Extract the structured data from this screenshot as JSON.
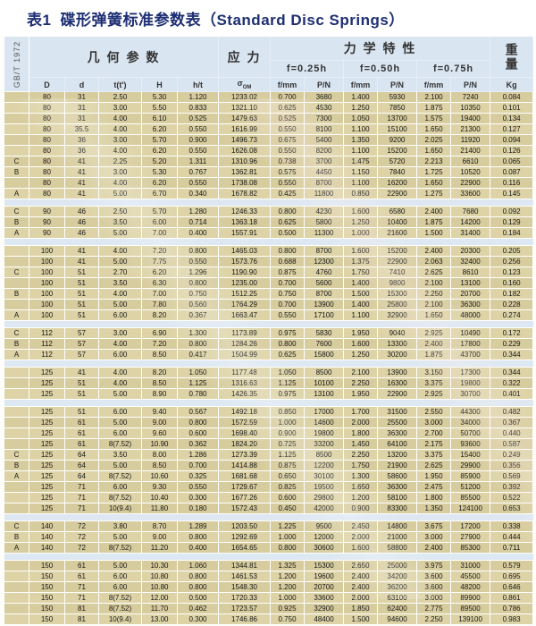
{
  "title": {
    "label": "表1",
    "zh": "碟形弹簧标准参数表",
    "en": "（Standard Disc Springs）"
  },
  "standard": "GB/T 1972",
  "header": {
    "geometry": "几 何 参 数",
    "stress": "应 力",
    "mechanical": "力 学 特 性",
    "weight": "重量",
    "deflections": [
      "f=0.25h",
      "f=0.50h",
      "f=0.75h"
    ],
    "columns": [
      "D",
      "d",
      "t(t')",
      "H",
      "h/t",
      "σ",
      "f/mm",
      "P/N",
      "f/mm",
      "P/N",
      "f/mm",
      "P/N",
      "Kg"
    ],
    "sigma_sub": "OM"
  },
  "colors": {
    "header_bg": "#d9e5f1",
    "row_bg": "#d7cc9d",
    "row_bg_alt": "#ddd3a6",
    "separator_bg": "#dde8f2",
    "title_color": "#1d2e73"
  },
  "groups": [
    {
      "rows": [
        [
          "",
          "80",
          "31",
          "2.50",
          "5.30",
          "1.120",
          "1233.02",
          "0.700",
          "3680",
          "1.400",
          "5930",
          "2.100",
          "7240",
          "0.084"
        ],
        [
          "",
          "80",
          "31",
          "3.00",
          "5.50",
          "0.833",
          "1321.10",
          "0.625",
          "4530",
          "1.250",
          "7850",
          "1.875",
          "10350",
          "0.101"
        ],
        [
          "",
          "80",
          "31",
          "4.00",
          "6.10",
          "0.525",
          "1479.63",
          "0.525",
          "7300",
          "1.050",
          "13700",
          "1.575",
          "19400",
          "0.134"
        ],
        [
          "",
          "80",
          "35.5",
          "4.00",
          "6.20",
          "0.550",
          "1616.99",
          "0.550",
          "8100",
          "1.100",
          "15100",
          "1.650",
          "21300",
          "0.127"
        ],
        [
          "",
          "80",
          "36",
          "3.00",
          "5.70",
          "0.900",
          "1496.73",
          "0.675",
          "5400",
          "1.350",
          "9200",
          "2.025",
          "11920",
          "0.094"
        ],
        [
          "",
          "80",
          "36",
          "4.00",
          "6.20",
          "0.550",
          "1626.08",
          "0.550",
          "8200",
          "1.100",
          "15200",
          "1.650",
          "21400",
          "0.126"
        ],
        [
          "C",
          "80",
          "41",
          "2.25",
          "5.20",
          "1.311",
          "1310.96",
          "0.738",
          "3700",
          "1.475",
          "5720",
          "2.213",
          "6610",
          "0.065"
        ],
        [
          "B",
          "80",
          "41",
          "3.00",
          "5.30",
          "0.767",
          "1362.81",
          "0.575",
          "4450",
          "1.150",
          "7840",
          "1.725",
          "10520",
          "0.087"
        ],
        [
          "",
          "80",
          "41",
          "4.00",
          "6.20",
          "0.550",
          "1738.08",
          "0.550",
          "8700",
          "1.100",
          "16200",
          "1.650",
          "22900",
          "0.116"
        ],
        [
          "A",
          "80",
          "41",
          "5.00",
          "6.70",
          "0.340",
          "1678.82",
          "0.425",
          "11800",
          "0.850",
          "22900",
          "1.275",
          "33600",
          "0.145"
        ]
      ]
    },
    {
      "rows": [
        [
          "C",
          "90",
          "46",
          "2.50",
          "5.70",
          "1.280",
          "1246.33",
          "0.800",
          "4230",
          "1.600",
          "6580",
          "2.400",
          "7680",
          "0.092"
        ],
        [
          "B",
          "90",
          "46",
          "3.50",
          "6.00",
          "0.714",
          "1363.18",
          "0.625",
          "5800",
          "1.250",
          "10400",
          "1.875",
          "14200",
          "0.129"
        ],
        [
          "A",
          "90",
          "46",
          "5.00",
          "7.00",
          "0.400",
          "1557.91",
          "0.500",
          "11300",
          "1.000",
          "21600",
          "1.500",
          "31400",
          "0.184"
        ]
      ]
    },
    {
      "rows": [
        [
          "",
          "100",
          "41",
          "4.00",
          "7.20",
          "0.800",
          "1465.03",
          "0.800",
          "8700",
          "1.600",
          "15200",
          "2.400",
          "20300",
          "0.205"
        ],
        [
          "",
          "100",
          "41",
          "5.00",
          "7.75",
          "0.550",
          "1573.76",
          "0.688",
          "12300",
          "1.375",
          "22900",
          "2.063",
          "32400",
          "0.256"
        ],
        [
          "C",
          "100",
          "51",
          "2.70",
          "6.20",
          "1.296",
          "1190.90",
          "0.875",
          "4760",
          "1.750",
          "7410",
          "2.625",
          "8610",
          "0.123"
        ],
        [
          "",
          "100",
          "51",
          "3.50",
          "6.30",
          "0.800",
          "1235.00",
          "0.700",
          "5600",
          "1.400",
          "9800",
          "2.100",
          "13100",
          "0.160"
        ],
        [
          "B",
          "100",
          "51",
          "4.00",
          "7.00",
          "0.750",
          "1512.25",
          "0.750",
          "8700",
          "1.500",
          "15300",
          "2.250",
          "20700",
          "0.182"
        ],
        [
          "",
          "100",
          "51",
          "5.00",
          "7.80",
          "0.560",
          "1764.29",
          "0.700",
          "13900",
          "1.400",
          "25800",
          "2.100",
          "36300",
          "0.228"
        ],
        [
          "A",
          "100",
          "51",
          "6.00",
          "8.20",
          "0.367",
          "1663.47",
          "0.550",
          "17100",
          "1.100",
          "32900",
          "1.650",
          "48000",
          "0.274"
        ]
      ]
    },
    {
      "rows": [
        [
          "C",
          "112",
          "57",
          "3.00",
          "6.90",
          "1.300",
          "1173.89",
          "0.975",
          "5830",
          "1.950",
          "9040",
          "2.925",
          "10490",
          "0.172"
        ],
        [
          "B",
          "112",
          "57",
          "4.00",
          "7.20",
          "0.800",
          "1284.26",
          "0.800",
          "7600",
          "1.600",
          "13300",
          "2.400",
          "17800",
          "0.229"
        ],
        [
          "A",
          "112",
          "57",
          "6.00",
          "8.50",
          "0.417",
          "1504.99",
          "0.625",
          "15800",
          "1.250",
          "30200",
          "1.875",
          "43700",
          "0.344"
        ]
      ]
    },
    {
      "rows": [
        [
          "",
          "125",
          "41",
          "4.00",
          "8.20",
          "1.050",
          "1177.48",
          "1.050",
          "8500",
          "2.100",
          "13900",
          "3.150",
          "17300",
          "0.344"
        ],
        [
          "",
          "125",
          "51",
          "4.00",
          "8.50",
          "1.125",
          "1316.63",
          "1.125",
          "10100",
          "2.250",
          "16300",
          "3.375",
          "19800",
          "0.322"
        ],
        [
          "",
          "125",
          "51",
          "5.00",
          "8.90",
          "0.780",
          "1426.35",
          "0.975",
          "13100",
          "1.950",
          "22900",
          "2.925",
          "30700",
          "0.401"
        ]
      ]
    },
    {
      "rows": [
        [
          "",
          "125",
          "51",
          "6.00",
          "9.40",
          "0.567",
          "1492.18",
          "0.850",
          "17000",
          "1.700",
          "31500",
          "2.550",
          "44300",
          "0.482"
        ],
        [
          "",
          "125",
          "61",
          "5.00",
          "9.00",
          "0.800",
          "1572.59",
          "1.000",
          "14600",
          "2.000",
          "25500",
          "3.000",
          "34000",
          "0.367"
        ],
        [
          "",
          "125",
          "61",
          "6.00",
          "9.60",
          "0.600",
          "1698.40",
          "0.900",
          "19800",
          "1.800",
          "36300",
          "2.700",
          "50700",
          "0.440"
        ],
        [
          "",
          "125",
          "61",
          "8(7.52)",
          "10.90",
          "0.362",
          "1824.20",
          "0.725",
          "33200",
          "1.450",
          "64100",
          "2.175",
          "93600",
          "0.587"
        ],
        [
          "C",
          "125",
          "64",
          "3.50",
          "8.00",
          "1.286",
          "1273.39",
          "1.125",
          "8500",
          "2.250",
          "13200",
          "3.375",
          "15400",
          "0.249"
        ],
        [
          "B",
          "125",
          "64",
          "5.00",
          "8.50",
          "0.700",
          "1414.88",
          "0.875",
          "12200",
          "1.750",
          "21900",
          "2.625",
          "29900",
          "0.356"
        ],
        [
          "A",
          "125",
          "64",
          "8(7.52)",
          "10.60",
          "0.325",
          "1681.68",
          "0.650",
          "30100",
          "1.300",
          "58600",
          "1.950",
          "85900",
          "0.569"
        ],
        [
          "",
          "125",
          "71",
          "6.00",
          "9.30",
          "0.550",
          "1729.67",
          "0.825",
          "19500",
          "1.650",
          "36300",
          "2.475",
          "51200",
          "0.392"
        ],
        [
          "",
          "125",
          "71",
          "8(7.52)",
          "10.40",
          "0.300",
          "1677.26",
          "0.600",
          "29800",
          "1.200",
          "58100",
          "1.800",
          "85500",
          "0.522"
        ],
        [
          "",
          "125",
          "71",
          "10(9.4)",
          "11.80",
          "0.180",
          "1572.43",
          "0.450",
          "42000",
          "0.900",
          "83300",
          "1.350",
          "124100",
          "0.653"
        ]
      ]
    },
    {
      "rows": [
        [
          "C",
          "140",
          "72",
          "3.80",
          "8.70",
          "1.289",
          "1203.50",
          "1.225",
          "9500",
          "2.450",
          "14800",
          "3.675",
          "17200",
          "0.338"
        ],
        [
          "B",
          "140",
          "72",
          "5.00",
          "9.00",
          "0.800",
          "1292.69",
          "1.000",
          "12000",
          "2.000",
          "21000",
          "3.000",
          "27900",
          "0.444"
        ],
        [
          "A",
          "140",
          "72",
          "8(7.52)",
          "11.20",
          "0.400",
          "1654.65",
          "0.800",
          "30600",
          "1.600",
          "58800",
          "2.400",
          "85300",
          "0.711"
        ]
      ]
    },
    {
      "rows": [
        [
          "",
          "150",
          "61",
          "5.00",
          "10.30",
          "1.060",
          "1344.81",
          "1.325",
          "15300",
          "2.650",
          "25000",
          "3.975",
          "31000",
          "0.579"
        ],
        [
          "",
          "150",
          "61",
          "6.00",
          "10.80",
          "0.800",
          "1461.53",
          "1.200",
          "19600",
          "2.400",
          "34200",
          "3.600",
          "45500",
          "0.695"
        ],
        [
          "",
          "150",
          "71",
          "6.00",
          "10.80",
          "0.800",
          "1548.30",
          "1.200",
          "20700",
          "2.400",
          "36200",
          "3.600",
          "48200",
          "0.646"
        ],
        [
          "",
          "150",
          "71",
          "8(7.52)",
          "12.00",
          "0.500",
          "1720.33",
          "1.000",
          "33600",
          "2.000",
          "63100",
          "3.000",
          "89900",
          "0.861"
        ],
        [
          "",
          "150",
          "81",
          "8(7.52)",
          "11.70",
          "0.462",
          "1723.57",
          "0.925",
          "32900",
          "1.850",
          "62400",
          "2.775",
          "89500",
          "0.786"
        ],
        [
          "",
          "150",
          "81",
          "10(9.4)",
          "13.00",
          "0.300",
          "1746.86",
          "0.750",
          "48400",
          "1.500",
          "94600",
          "2.250",
          "139100",
          "0.983"
        ]
      ]
    }
  ]
}
